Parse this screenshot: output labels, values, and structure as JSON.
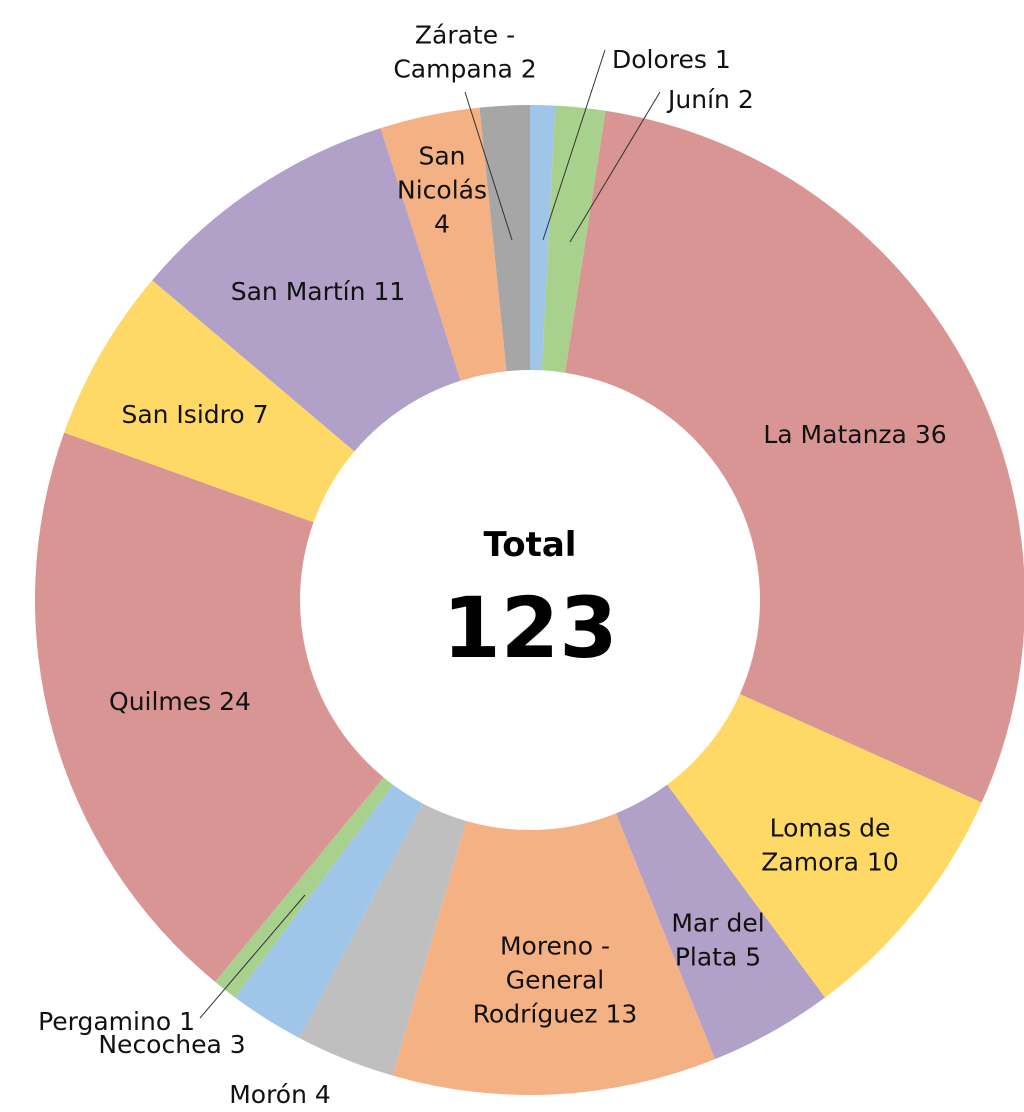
{
  "chart_data": {
    "type": "donut",
    "categories": [
      "Dolores",
      "Junín",
      "La Matanza",
      "Lomas de Zamora",
      "Mar del Plata",
      "Moreno - General Rodríguez",
      "Morón",
      "Necochea",
      "Pergamino",
      "Quilmes",
      "San Isidro",
      "San Martín",
      "San Nicolás",
      "Zárate - Campana"
    ],
    "values": [
      1,
      2,
      36,
      10,
      5,
      13,
      4,
      3,
      1,
      24,
      7,
      11,
      4,
      2
    ],
    "colors": [
      "#9fc5e8",
      "#a9d18e",
      "#d99594",
      "#ffd966",
      "#b1a0c7",
      "#f4b183",
      "#bfbfbf",
      "#9fc5e8",
      "#a9d18e",
      "#d99594",
      "#ffd966",
      "#b1a0c7",
      "#f4b183",
      "#a6a6a6"
    ],
    "center_title": "Total",
    "center_value": 123
  }
}
